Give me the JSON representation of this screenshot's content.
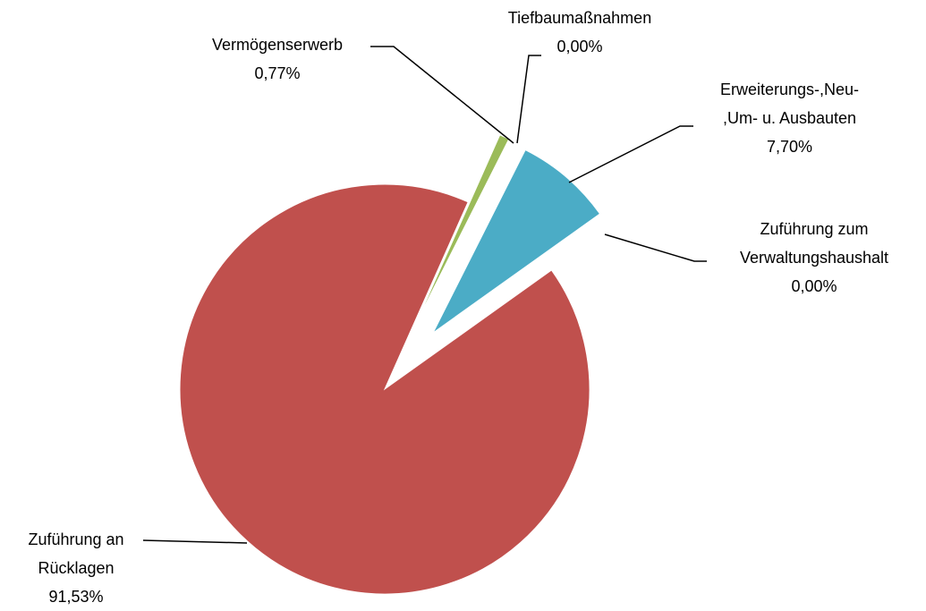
{
  "chart_data": {
    "type": "pie",
    "categories": [
      "Vermögenserwerb",
      "Tiefbaumaßnahmen",
      "Erweiterungs-,Neu- ,Um- u. Ausbauten",
      "Zuführung zum Verwaltungshaushalt",
      "Zuführung an Rücklagen"
    ],
    "values": [
      0.77,
      0,
      7.7,
      0,
      91.53
    ],
    "value_labels": [
      "0,77%",
      "0,00%",
      "7,70%",
      "0,00%",
      "91,53%"
    ],
    "colors": [
      "#9bbb59",
      "#4f81bd",
      "#4bacc6",
      "#8064a2",
      "#c0504d"
    ]
  }
}
